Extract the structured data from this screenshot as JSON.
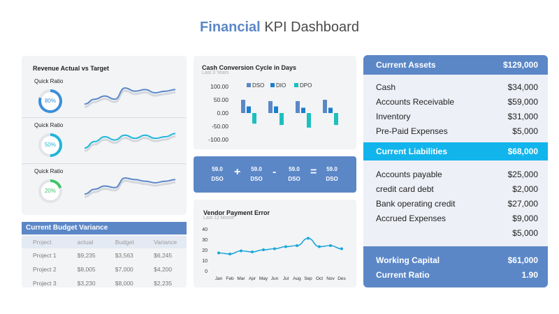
{
  "header": {
    "title_accent": "Financial",
    "title_rest": "KPI Dashboard"
  },
  "revenue": {
    "title": "Revenue Actual vs Target",
    "rows": [
      {
        "label": "Quick Ratio",
        "percent_text": "80%",
        "percent": 80,
        "color": "#3a8fd9"
      },
      {
        "label": "Quick Ratio",
        "percent_text": "50%",
        "percent": 50,
        "color": "#1fb6d9"
      },
      {
        "label": "Quick Ratio",
        "percent_text": "20%",
        "percent": 20,
        "color": "#3fc46a"
      }
    ]
  },
  "budget": {
    "title": "Current Budget Variance",
    "columns": [
      "Project",
      "actual",
      "Budget",
      "Variance"
    ],
    "rows": [
      [
        "Project 1",
        "$9,235",
        "$3,563",
        "$6,245"
      ],
      [
        "Project 2",
        "$8,005",
        "$7,000",
        "$4,200"
      ],
      [
        "Project 3",
        "$3,230",
        "$8,000",
        "$2,235"
      ]
    ]
  },
  "cash": {
    "title": "Cash Conversion Cycle in Days",
    "subtitle": "Last 3 Years"
  },
  "dso": {
    "items": [
      {
        "value": "59.0",
        "label": "DSO"
      },
      {
        "value": "59.0",
        "label": "DSO"
      },
      {
        "value": "59.0",
        "label": "DSO"
      },
      {
        "value": "59.0",
        "label": "DSO"
      }
    ],
    "ops": [
      "+",
      "-",
      "="
    ]
  },
  "vendor": {
    "title": "Vendor Payment Error",
    "subtitle": "Last 12 Month"
  },
  "assets": {
    "current_assets": {
      "label": "Current Assets",
      "value": "$129,000"
    },
    "asset_items": [
      {
        "label": "Cash",
        "value": "$34,000"
      },
      {
        "label": "Accounts Receivable",
        "value": "$59,000"
      },
      {
        "label": "Inventory",
        "value": "$31,000"
      },
      {
        "label": "Pre-Paid Expenses",
        "value": "$5,000"
      }
    ],
    "current_liabilities": {
      "label": "Current Liabilities",
      "value": "$68,000"
    },
    "liability_items": [
      {
        "label": "Accounts payable",
        "value": "$25,000"
      },
      {
        "label": "credit card debt",
        "value": "$2,000"
      },
      {
        "label": "Bank operating credit",
        "value": "$27,000"
      },
      {
        "label": "Accrued Expenses",
        "value": "$9,000"
      },
      {
        "label": "",
        "value": "$5,000"
      }
    ],
    "working_capital": {
      "label": "Working Capital",
      "value": "$61,000"
    },
    "current_ratio": {
      "label": "Current Ratio",
      "value": "1.90"
    }
  },
  "chart_data": [
    {
      "type": "bar",
      "title": "Cash Conversion Cycle in Days",
      "subtitle": "Last 3 Years",
      "categories": [
        "1",
        "2",
        "3",
        "4"
      ],
      "series": [
        {
          "name": "DSO",
          "values": [
            50,
            45,
            45,
            50
          ],
          "color": "#5b87c7"
        },
        {
          "name": "DIO",
          "values": [
            25,
            25,
            20,
            20
          ],
          "color": "#1a7fd0"
        },
        {
          "name": "DPO",
          "values": [
            -40,
            -45,
            -55,
            -45
          ],
          "color": "#1dbfbf"
        }
      ],
      "yticks": [
        "100.00",
        "50.00",
        "0.00",
        "-50.00",
        "-100.00"
      ],
      "ylim": [
        -100,
        100
      ],
      "legend": "top"
    },
    {
      "type": "line",
      "title": "Vendor Payment Error",
      "subtitle": "Last 12 Month",
      "categories": [
        "Jan",
        "Feb",
        "Mar",
        "Apr",
        "May",
        "Jun",
        "Jul",
        "Aug",
        "Sep",
        "Oct",
        "Nov",
        "Des"
      ],
      "values": [
        17,
        16,
        19,
        18,
        20,
        21,
        23,
        24,
        31,
        23,
        24,
        21
      ],
      "yticks": [
        "40",
        "30",
        "20",
        "10",
        "0"
      ],
      "ylim": [
        0,
        40
      ],
      "color": "#1aa6d9"
    },
    {
      "type": "line",
      "title": "Revenue sparklines",
      "series": [
        {
          "values": [
            3,
            6,
            8,
            6,
            13,
            11,
            12,
            10,
            11,
            12
          ],
          "color": "#5b87c7"
        },
        {
          "values": [
            3,
            7,
            10,
            8,
            11,
            9,
            11,
            9,
            10,
            12
          ],
          "color": "#1fb6d9"
        },
        {
          "values": [
            3,
            6,
            8,
            7,
            13,
            12,
            11,
            10,
            11,
            12
          ],
          "color": "#5b87c7"
        }
      ]
    }
  ]
}
